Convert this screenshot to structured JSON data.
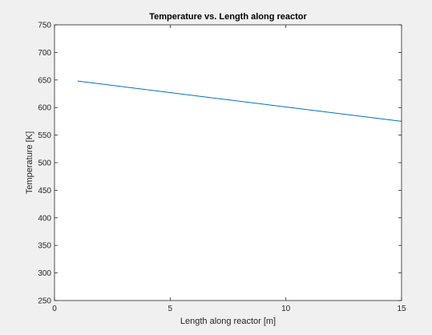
{
  "chart_data": {
    "type": "line",
    "title": "Temperature vs. Length along reactor",
    "xlabel": "Length along reactor [m]",
    "ylabel": "Temperature [K]",
    "xlim": [
      0,
      15
    ],
    "ylim": [
      250,
      750
    ],
    "xticks": [
      0,
      5,
      10,
      15
    ],
    "yticks": [
      250,
      300,
      350,
      400,
      450,
      500,
      550,
      600,
      650,
      700,
      750
    ],
    "grid": false,
    "legend": "none",
    "series": [
      {
        "color": "#0072bd",
        "x": [
          1,
          15
        ],
        "y": [
          648,
          575
        ]
      }
    ]
  }
}
